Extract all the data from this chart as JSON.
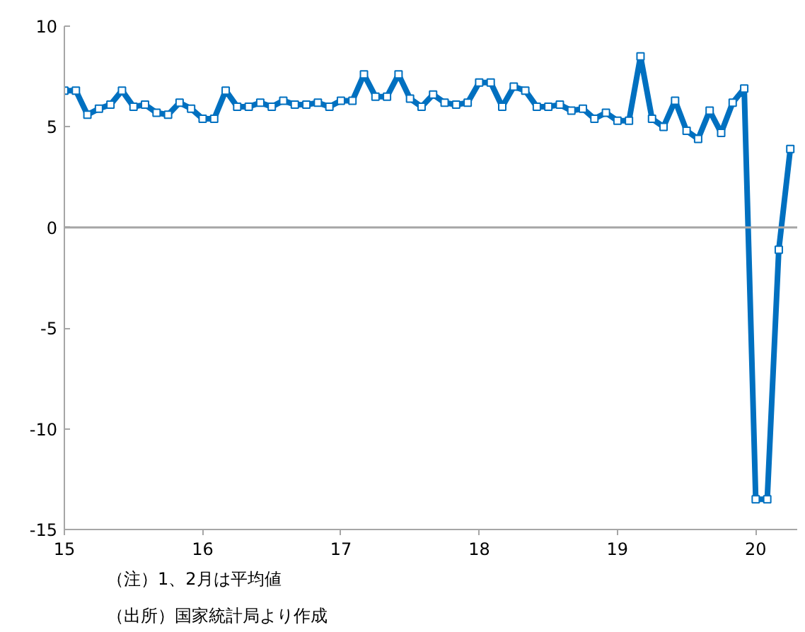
{
  "chart_data": {
    "type": "line",
    "x": [
      15.0,
      15.0833,
      15.1667,
      15.25,
      15.3333,
      15.4167,
      15.5,
      15.5833,
      15.6667,
      15.75,
      15.8333,
      15.9167,
      16.0,
      16.0833,
      16.1667,
      16.25,
      16.3333,
      16.4167,
      16.5,
      16.5833,
      16.6667,
      16.75,
      16.8333,
      16.9167,
      17.0,
      17.0833,
      17.1667,
      17.25,
      17.3333,
      17.4167,
      17.5,
      17.5833,
      17.6667,
      17.75,
      17.8333,
      17.9167,
      18.0,
      18.0833,
      18.1667,
      18.25,
      18.3333,
      18.4167,
      18.5,
      18.5833,
      18.6667,
      18.75,
      18.8333,
      18.9167,
      19.0,
      19.0833,
      19.1667,
      19.25,
      19.3333,
      19.4167,
      19.5,
      19.5833,
      19.6667,
      19.75,
      19.8333,
      19.9167,
      20.0,
      20.0833,
      20.1667,
      20.25
    ],
    "series": [
      {
        "color": "#0070c0",
        "values": [
          6.8,
          6.8,
          5.6,
          5.9,
          6.1,
          6.8,
          6.0,
          6.1,
          5.7,
          5.6,
          6.2,
          5.9,
          5.4,
          5.4,
          6.8,
          6.0,
          6.0,
          6.2,
          6.0,
          6.3,
          6.1,
          6.1,
          6.2,
          6.0,
          6.3,
          6.3,
          7.6,
          6.5,
          6.5,
          7.6,
          6.4,
          6.0,
          6.6,
          6.2,
          6.1,
          6.2,
          7.2,
          7.2,
          6.0,
          7.0,
          6.8,
          6.0,
          6.0,
          6.1,
          5.8,
          5.9,
          5.4,
          5.7,
          5.3,
          5.3,
          8.5,
          5.4,
          5.0,
          6.3,
          4.8,
          4.4,
          5.8,
          4.7,
          6.2,
          6.9,
          -13.5,
          -13.5,
          -1.1,
          3.9
        ]
      }
    ],
    "xlim": [
      15,
      20.3
    ],
    "xticks": [
      15,
      16,
      17,
      18,
      19,
      20
    ],
    "ylim": [
      -15,
      10
    ],
    "yticks": [
      -15,
      -10,
      -5,
      0,
      5,
      10
    ],
    "ref_lines": [
      {
        "axis": "y",
        "value": 0,
        "color": "#a6a6a6"
      }
    ],
    "marker": "square",
    "grid": false,
    "annotations": [
      "（注）1、2月は平均値",
      "（出所）国家統計局より作成"
    ]
  }
}
